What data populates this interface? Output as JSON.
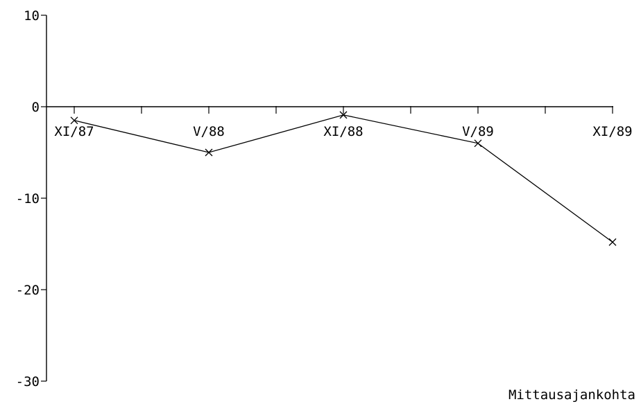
{
  "chart_data": {
    "type": "line",
    "title": "",
    "xlabel": "Mittausajankohta",
    "ylabel": "",
    "categories": [
      "XI/87",
      "V/88",
      "XI/88",
      "V/89",
      "XI/89"
    ],
    "y_ticks": [
      10,
      0,
      -10,
      -20,
      -30
    ],
    "ylim": [
      -30,
      10
    ],
    "series": [
      {
        "values": [
          -1.5,
          -5.0,
          -0.9,
          -4.0,
          -14.8
        ]
      }
    ],
    "grid": false,
    "marker": "x"
  }
}
